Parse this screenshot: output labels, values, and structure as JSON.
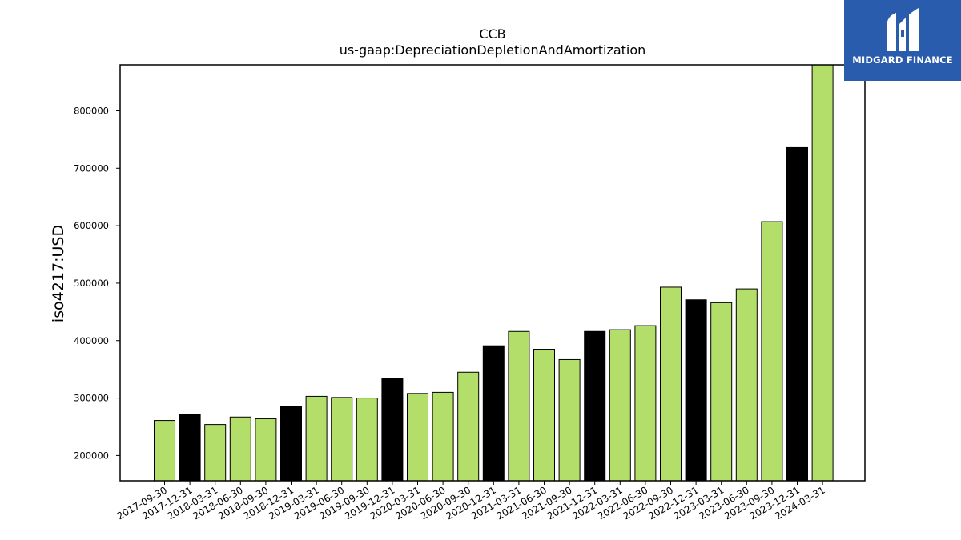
{
  "chart_data": {
    "type": "bar",
    "title": "CCB",
    "subtitle": "us-gaap:DepreciationDepletionAndAmortization",
    "xlabel": "",
    "ylabel": "iso4217:USD",
    "categories": [
      "2017-09-30",
      "2017-12-31",
      "2018-03-31",
      "2018-06-30",
      "2018-09-30",
      "2018-12-31",
      "2019-03-31",
      "2019-06-30",
      "2019-09-30",
      "2019-12-31",
      "2020-03-31",
      "2020-06-30",
      "2020-09-30",
      "2020-12-31",
      "2021-03-31",
      "2021-06-30",
      "2021-09-30",
      "2021-12-31",
      "2022-03-31",
      "2022-06-30",
      "2022-09-30",
      "2022-12-31",
      "2023-03-31",
      "2023-06-30",
      "2023-09-30",
      "2023-12-31",
      "2024-03-31"
    ],
    "values": [
      261000,
      271000,
      254000,
      267000,
      264000,
      285000,
      303000,
      301000,
      300000,
      334000,
      308000,
      310000,
      345000,
      391000,
      416000,
      385000,
      367000,
      416000,
      419000,
      426000,
      493000,
      471000,
      466000,
      490000,
      607000,
      736000,
      880000
    ],
    "bar_colors": [
      "#b3de69",
      "#000000",
      "#b3de69",
      "#b3de69",
      "#b3de69",
      "#000000",
      "#b3de69",
      "#b3de69",
      "#b3de69",
      "#000000",
      "#b3de69",
      "#b3de69",
      "#b3de69",
      "#000000",
      "#b3de69",
      "#b3de69",
      "#b3de69",
      "#000000",
      "#b3de69",
      "#b3de69",
      "#b3de69",
      "#000000",
      "#b3de69",
      "#b3de69",
      "#b3de69",
      "#000000",
      "#b3de69"
    ],
    "yticks": [
      200000,
      300000,
      400000,
      500000,
      600000,
      700000,
      800000
    ],
    "ylim": [
      156000,
      880000
    ],
    "grid": false,
    "legend": "none"
  },
  "logo": {
    "name": "MIDGARD FINANCE",
    "color": "#2a5cad"
  }
}
